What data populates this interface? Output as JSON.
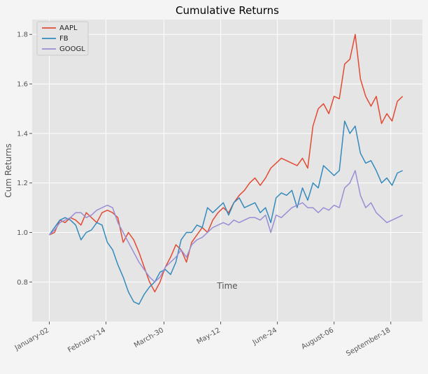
{
  "chart_data": {
    "type": "line",
    "title": "Cumulative Returns",
    "xlabel": "Time",
    "ylabel": "Cum Returns",
    "ylim": [
      0.64,
      1.86
    ],
    "yticks": [
      0.8,
      1.0,
      1.2,
      1.4,
      1.6,
      1.8
    ],
    "ytick_labels": [
      "0.8",
      "1.0",
      "1.2",
      "1.4",
      "1.6",
      "1.8"
    ],
    "xticks": [
      {
        "label": "January-02",
        "t": 0
      },
      {
        "label": "February-14",
        "t": 43
      },
      {
        "label": "March-30",
        "t": 87
      },
      {
        "label": "May-12",
        "t": 130
      },
      {
        "label": "June-24",
        "t": 173
      },
      {
        "label": "August-06",
        "t": 216
      },
      {
        "label": "September-18",
        "t": 259
      }
    ],
    "xlim": [
      -13,
      283
    ],
    "grid": true,
    "legend_position": "top-left",
    "colors": {
      "AAPL": "#e24a33",
      "FB": "#348abd",
      "GOOGL": "#988ed5"
    },
    "series": [
      {
        "name": "AAPL",
        "x": [
          0,
          4,
          8,
          12,
          16,
          20,
          24,
          28,
          32,
          36,
          40,
          44,
          48,
          52,
          56,
          60,
          64,
          68,
          72,
          76,
          80,
          84,
          88,
          92,
          96,
          100,
          104,
          108,
          112,
          116,
          120,
          124,
          128,
          132,
          136,
          140,
          144,
          148,
          152,
          156,
          160,
          164,
          168,
          172,
          176,
          180,
          184,
          188,
          192,
          196,
          200,
          204,
          208,
          212,
          216,
          220,
          224,
          228,
          232,
          236,
          240,
          244,
          248,
          252,
          256,
          260,
          264,
          268
        ],
        "values": [
          0.99,
          1.0,
          1.05,
          1.04,
          1.06,
          1.05,
          1.03,
          1.08,
          1.06,
          1.04,
          1.08,
          1.09,
          1.08,
          1.06,
          0.96,
          1.0,
          0.97,
          0.92,
          0.86,
          0.8,
          0.76,
          0.8,
          0.86,
          0.9,
          0.95,
          0.93,
          0.88,
          0.96,
          0.99,
          1.02,
          1.0,
          1.05,
          1.08,
          1.1,
          1.08,
          1.12,
          1.15,
          1.17,
          1.2,
          1.22,
          1.19,
          1.22,
          1.26,
          1.28,
          1.3,
          1.29,
          1.28,
          1.27,
          1.3,
          1.26,
          1.43,
          1.5,
          1.52,
          1.48,
          1.55,
          1.54,
          1.68,
          1.7,
          1.8,
          1.62,
          1.55,
          1.51,
          1.55,
          1.44,
          1.48,
          1.45,
          1.53,
          1.55
        ]
      },
      {
        "name": "FB",
        "x": [
          0,
          4,
          8,
          12,
          16,
          20,
          24,
          28,
          32,
          36,
          40,
          44,
          48,
          52,
          56,
          60,
          64,
          68,
          72,
          76,
          80,
          84,
          88,
          92,
          96,
          100,
          104,
          108,
          112,
          116,
          120,
          124,
          128,
          132,
          136,
          140,
          144,
          148,
          152,
          156,
          160,
          164,
          168,
          172,
          176,
          180,
          184,
          188,
          192,
          196,
          200,
          204,
          208,
          212,
          216,
          220,
          224,
          228,
          232,
          236,
          240,
          244,
          248,
          252,
          256,
          260,
          264,
          268
        ],
        "values": [
          0.99,
          1.02,
          1.05,
          1.06,
          1.05,
          1.03,
          0.97,
          1.0,
          1.01,
          1.04,
          1.03,
          0.96,
          0.93,
          0.87,
          0.82,
          0.76,
          0.72,
          0.71,
          0.75,
          0.78,
          0.8,
          0.84,
          0.85,
          0.83,
          0.88,
          0.97,
          1.0,
          1.0,
          1.03,
          1.02,
          1.1,
          1.08,
          1.1,
          1.12,
          1.07,
          1.12,
          1.14,
          1.1,
          1.11,
          1.12,
          1.08,
          1.1,
          1.04,
          1.14,
          1.16,
          1.15,
          1.17,
          1.1,
          1.18,
          1.13,
          1.2,
          1.18,
          1.27,
          1.25,
          1.23,
          1.25,
          1.45,
          1.4,
          1.43,
          1.32,
          1.28,
          1.29,
          1.25,
          1.2,
          1.22,
          1.19,
          1.24,
          1.25
        ]
      },
      {
        "name": "GOOGL",
        "x": [
          0,
          4,
          8,
          12,
          16,
          20,
          24,
          28,
          32,
          36,
          40,
          44,
          48,
          52,
          56,
          60,
          64,
          68,
          72,
          76,
          80,
          84,
          88,
          92,
          96,
          100,
          104,
          108,
          112,
          116,
          120,
          124,
          128,
          132,
          136,
          140,
          144,
          148,
          152,
          156,
          160,
          164,
          168,
          172,
          176,
          180,
          184,
          188,
          192,
          196,
          200,
          204,
          208,
          212,
          216,
          220,
          224,
          228,
          232,
          236,
          240,
          244,
          248,
          252,
          256,
          260,
          264,
          268
        ],
        "values": [
          0.99,
          1.01,
          1.04,
          1.05,
          1.06,
          1.08,
          1.08,
          1.06,
          1.07,
          1.09,
          1.1,
          1.11,
          1.1,
          1.04,
          1.0,
          0.96,
          0.92,
          0.88,
          0.85,
          0.82,
          0.8,
          0.82,
          0.86,
          0.88,
          0.9,
          0.93,
          0.9,
          0.95,
          0.97,
          0.98,
          1.0,
          1.02,
          1.03,
          1.04,
          1.03,
          1.05,
          1.04,
          1.05,
          1.06,
          1.06,
          1.05,
          1.07,
          1.0,
          1.07,
          1.06,
          1.08,
          1.1,
          1.11,
          1.12,
          1.1,
          1.1,
          1.08,
          1.1,
          1.09,
          1.11,
          1.1,
          1.18,
          1.2,
          1.25,
          1.15,
          1.1,
          1.12,
          1.08,
          1.06,
          1.04,
          1.05,
          1.06,
          1.07
        ]
      }
    ]
  }
}
